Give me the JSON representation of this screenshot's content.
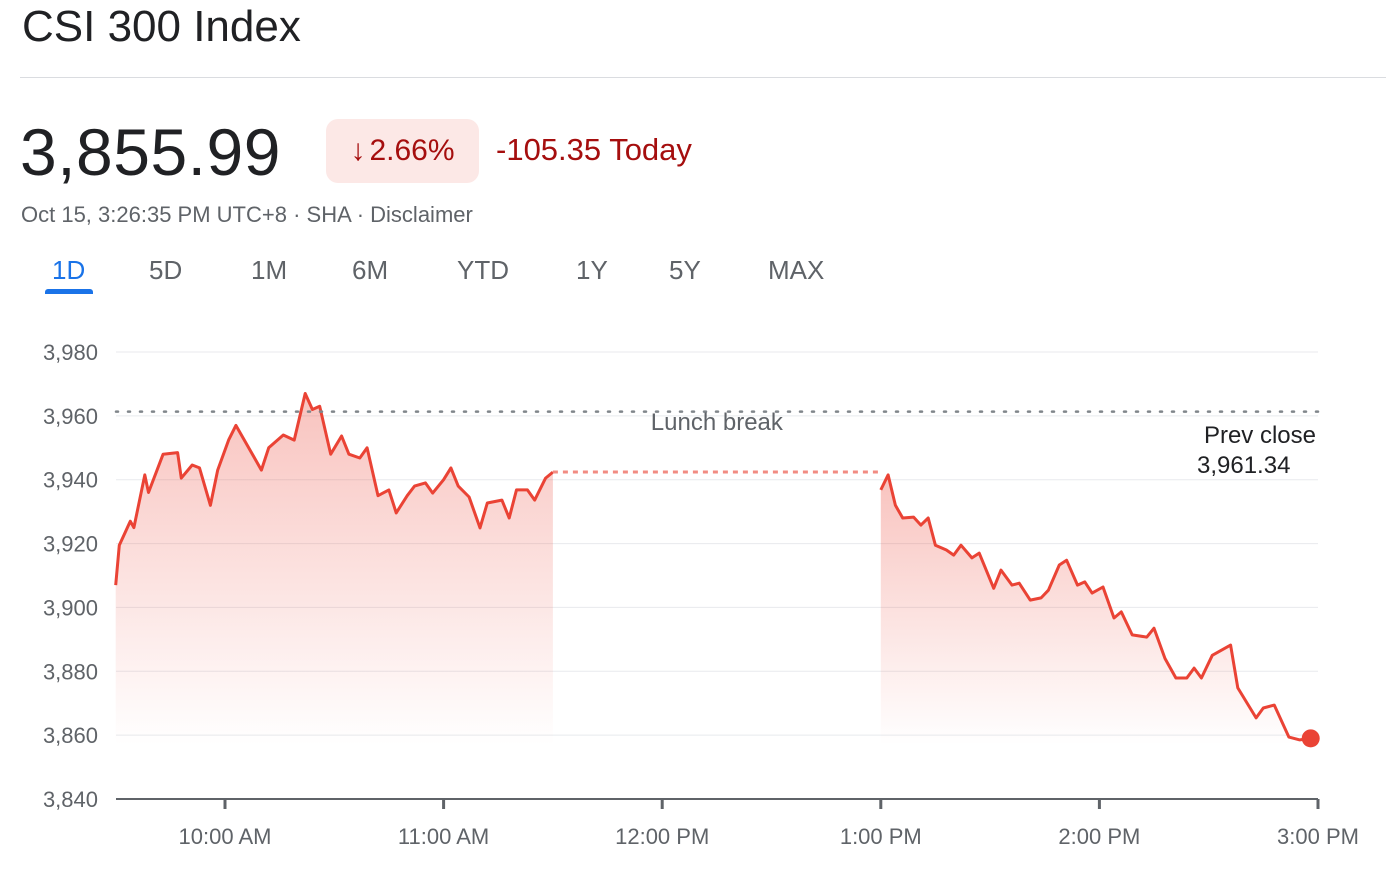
{
  "header": {
    "title": "CSI 300 Index"
  },
  "quote": {
    "price": "3,855.99",
    "change_percent": "2.66%",
    "arrow_icon": "arrow-down-icon",
    "change_today": "-105.35 Today",
    "timestamp": "Oct 15, 3:26:35 PM UTC+8",
    "separator": "·",
    "exchange": "SHA",
    "disclaimer": "Disclaimer",
    "negative_color": "#a50e0e"
  },
  "tabs": [
    {
      "label": "1D",
      "active": true
    },
    {
      "label": "5D"
    },
    {
      "label": "1M"
    },
    {
      "label": "6M"
    },
    {
      "label": "YTD"
    },
    {
      "label": "1Y"
    },
    {
      "label": "5Y"
    },
    {
      "label": "MAX"
    }
  ],
  "chart_data": {
    "type": "area",
    "line_color": "#ea4335",
    "ylim": [
      3840,
      3980
    ],
    "y_ticks": [
      "3,980",
      "3,960",
      "3,940",
      "3,920",
      "3,900",
      "3,880",
      "3,860",
      "3,840"
    ],
    "y_tick_values": [
      3980,
      3960,
      3940,
      3920,
      3900,
      3880,
      3860,
      3840
    ],
    "x_ticks": [
      "10:00 AM",
      "11:00 AM",
      "12:00 PM",
      "1:00 PM",
      "2:00 PM",
      "3:00 PM"
    ],
    "x_tick_times": [
      "10:00",
      "11:00",
      "12:00",
      "13:00",
      "14:00",
      "15:00"
    ],
    "grid": true,
    "prev_close": {
      "label": "Prev close",
      "value_label": "3,961.34",
      "value": 3961.34
    },
    "lunch_break": {
      "label": "Lunch break",
      "from": "11:30",
      "to": "13:00"
    },
    "sessions": [
      [
        [
          "9:30",
          3907
        ],
        [
          "9:31",
          3919.5
        ],
        [
          "9:34",
          3927
        ],
        [
          "9:35",
          3925
        ],
        [
          "9:38",
          3941.5
        ],
        [
          "9:39",
          3936
        ],
        [
          "9:43",
          3948
        ],
        [
          "9:47",
          3948.5
        ],
        [
          "9:48",
          3940.5
        ],
        [
          "9:51",
          3944.6
        ],
        [
          "9:53",
          3943.7
        ],
        [
          "9:56",
          3932
        ],
        [
          "9:58",
          3943
        ],
        [
          "10:01",
          3952.4
        ],
        [
          "10:03",
          3957
        ],
        [
          "10:06",
          3951
        ],
        [
          "10:10",
          3943
        ],
        [
          "10:12",
          3950
        ],
        [
          "10:16",
          3954
        ],
        [
          "10:19",
          3952.4
        ],
        [
          "10:22",
          3967
        ],
        [
          "10:24",
          3962
        ],
        [
          "10:26",
          3963
        ],
        [
          "10:29",
          3948
        ],
        [
          "10:32",
          3953.7
        ],
        [
          "10:34",
          3948
        ],
        [
          "10:37",
          3946.8
        ],
        [
          "10:39",
          3950
        ],
        [
          "10:42",
          3935
        ],
        [
          "10:45",
          3936.8
        ],
        [
          "10:47",
          3929.6
        ],
        [
          "10:50",
          3935
        ],
        [
          "10:52",
          3938
        ],
        [
          "10:55",
          3939
        ],
        [
          "10:57",
          3935.8
        ],
        [
          "11:00",
          3940
        ],
        [
          "11:02",
          3943.7
        ],
        [
          "11:04",
          3938
        ],
        [
          "11:07",
          3934.6
        ],
        [
          "11:10",
          3924.9
        ],
        [
          "11:12",
          3932.7
        ],
        [
          "11:16",
          3933.6
        ],
        [
          "11:18",
          3928
        ],
        [
          "11:20",
          3936.8
        ],
        [
          "11:23",
          3936.8
        ],
        [
          "11:25",
          3933.6
        ],
        [
          "11:28",
          3940.5
        ],
        [
          "11:30",
          3942.4
        ]
      ],
      [
        [
          "13:00",
          3936.8
        ],
        [
          "13:02",
          3941.5
        ],
        [
          "13:04",
          3932
        ],
        [
          "13:06",
          3928
        ],
        [
          "13:09",
          3928.3
        ],
        [
          "13:11",
          3925.8
        ],
        [
          "13:13",
          3928
        ],
        [
          "13:15",
          3919.5
        ],
        [
          "13:18",
          3918
        ],
        [
          "13:20",
          3916.4
        ],
        [
          "13:22",
          3919.5
        ],
        [
          "13:25",
          3915.5
        ],
        [
          "13:27",
          3917
        ],
        [
          "13:31",
          3906
        ],
        [
          "13:33",
          3911.7
        ],
        [
          "13:36",
          3907
        ],
        [
          "13:38",
          3907.6
        ],
        [
          "13:41",
          3902.3
        ],
        [
          "13:44",
          3903
        ],
        [
          "13:46",
          3905.4
        ],
        [
          "13:49",
          3913.3
        ],
        [
          "13:51",
          3914.8
        ],
        [
          "13:54",
          3907
        ],
        [
          "13:56",
          3908
        ],
        [
          "13:58",
          3904.5
        ],
        [
          "14:01",
          3906.4
        ],
        [
          "14:04",
          3896.7
        ],
        [
          "14:06",
          3898.6
        ],
        [
          "14:09",
          3891.4
        ],
        [
          "14:13",
          3890.7
        ],
        [
          "14:15",
          3893.5
        ],
        [
          "14:18",
          3884
        ],
        [
          "14:21",
          3877.9
        ],
        [
          "14:24",
          3877.9
        ],
        [
          "14:26",
          3881
        ],
        [
          "14:28",
          3877.9
        ],
        [
          "14:31",
          3885
        ],
        [
          "14:36",
          3888.2
        ],
        [
          "14:38",
          3874.8
        ],
        [
          "14:43",
          3865.4
        ],
        [
          "14:45",
          3868.5
        ],
        [
          "14:48",
          3869.4
        ],
        [
          "14:52",
          3859.4
        ],
        [
          "14:55",
          3858.5
        ],
        [
          "14:58",
          3859
        ]
      ]
    ]
  }
}
